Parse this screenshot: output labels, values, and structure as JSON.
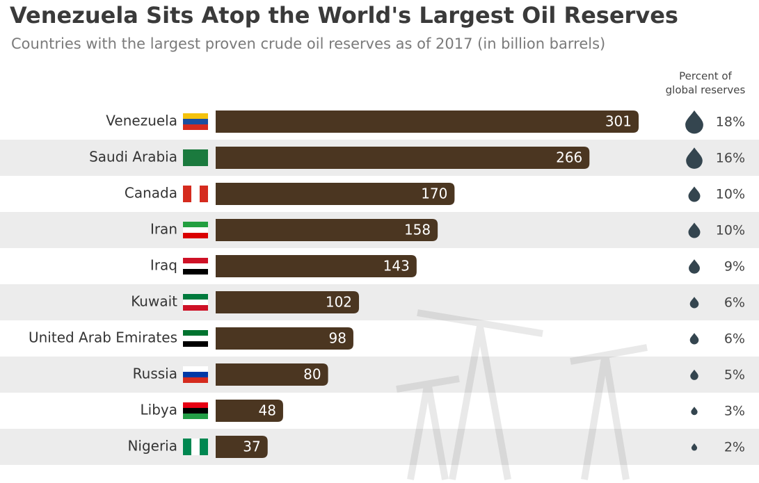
{
  "chart_data": {
    "type": "bar",
    "title": "Venezuela Sits Atop the World's Largest Oil Reserves",
    "subtitle": "Countries with the largest proven crude oil reserves as of 2017 (in billion barrels)",
    "categories": [
      "Venezuela",
      "Saudi Arabia",
      "Canada",
      "Iran",
      "Iraq",
      "Kuwait",
      "United Arab Emirates",
      "Russia",
      "Libya",
      "Nigeria"
    ],
    "values": [
      301,
      266,
      170,
      158,
      143,
      102,
      98,
      80,
      48,
      37
    ],
    "color": "#4b3621",
    "percent": {
      "header": [
        "Percent of",
        "global reserves"
      ],
      "values": [
        18,
        16,
        10,
        10,
        9,
        6,
        6,
        5,
        3,
        2
      ],
      "value_labels": [
        "18%",
        "16%",
        "10%",
        "10%",
        "9%",
        "6%",
        "6%",
        "5%",
        "3%",
        "2%"
      ],
      "color": "#34454f"
    }
  }
}
